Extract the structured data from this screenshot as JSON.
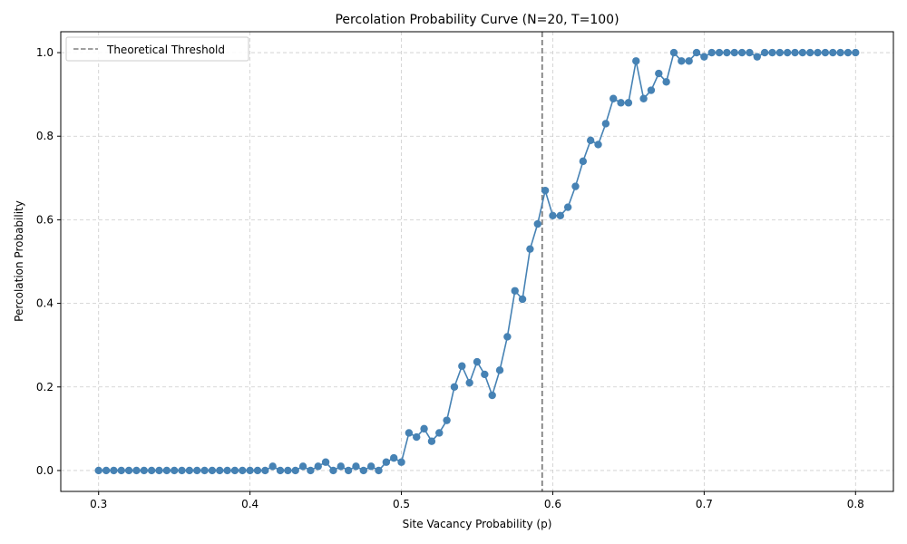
{
  "chart_data": {
    "type": "line",
    "title": "Percolation Probability Curve (N=20, T=100)",
    "xlabel": "Site Vacancy Probability (p)",
    "ylabel": "Percolation Probability",
    "xlim": [
      0.275,
      0.825
    ],
    "ylim": [
      -0.05,
      1.05
    ],
    "x_ticks": [
      0.3,
      0.4,
      0.5,
      0.6,
      0.7,
      0.8
    ],
    "x_tick_labels": [
      "0.3",
      "0.4",
      "0.5",
      "0.6",
      "0.7",
      "0.8"
    ],
    "y_ticks": [
      0.0,
      0.2,
      0.4,
      0.6,
      0.8,
      1.0
    ],
    "y_tick_labels": [
      "0.0",
      "0.2",
      "0.4",
      "0.6",
      "0.8",
      "1.0"
    ],
    "grid": true,
    "legend_position": "top-left",
    "threshold": {
      "name": "Theoretical Threshold",
      "x": 0.593,
      "color": "#808080"
    },
    "series": [
      {
        "color": "#4682b4",
        "x": [
          0.3,
          0.305,
          0.31,
          0.315,
          0.32,
          0.325,
          0.33,
          0.335,
          0.34,
          0.345,
          0.35,
          0.355,
          0.36,
          0.365,
          0.37,
          0.375,
          0.38,
          0.385,
          0.39,
          0.395,
          0.4,
          0.405,
          0.41,
          0.415,
          0.42,
          0.425,
          0.43,
          0.435,
          0.44,
          0.445,
          0.45,
          0.455,
          0.46,
          0.465,
          0.47,
          0.475,
          0.48,
          0.485,
          0.49,
          0.495,
          0.5,
          0.505,
          0.51,
          0.515,
          0.52,
          0.525,
          0.53,
          0.535,
          0.54,
          0.545,
          0.55,
          0.555,
          0.56,
          0.565,
          0.57,
          0.575,
          0.58,
          0.585,
          0.59,
          0.595,
          0.6,
          0.605,
          0.61,
          0.615,
          0.62,
          0.625,
          0.63,
          0.635,
          0.64,
          0.645,
          0.65,
          0.655,
          0.66,
          0.665,
          0.67,
          0.675,
          0.68,
          0.685,
          0.69,
          0.695,
          0.7,
          0.705,
          0.71,
          0.715,
          0.72,
          0.725,
          0.73,
          0.735,
          0.74,
          0.745,
          0.75,
          0.755,
          0.76,
          0.765,
          0.77,
          0.775,
          0.78,
          0.785,
          0.79,
          0.795,
          0.8
        ],
        "y": [
          0,
          0,
          0,
          0,
          0,
          0,
          0,
          0,
          0,
          0,
          0,
          0,
          0,
          0,
          0,
          0,
          0,
          0,
          0,
          0,
          0,
          0,
          0,
          0.01,
          0,
          0,
          0,
          0.01,
          0,
          0.01,
          0.02,
          0,
          0.01,
          0,
          0.01,
          0,
          0.01,
          0,
          0.02,
          0.03,
          0.02,
          0.09,
          0.08,
          0.1,
          0.07,
          0.09,
          0.12,
          0.2,
          0.25,
          0.21,
          0.26,
          0.23,
          0.18,
          0.24,
          0.32,
          0.43,
          0.41,
          0.53,
          0.59,
          0.67,
          0.61,
          0.61,
          0.63,
          0.68,
          0.74,
          0.79,
          0.78,
          0.83,
          0.89,
          0.88,
          0.88,
          0.98,
          0.89,
          0.91,
          0.95,
          0.93,
          1.0,
          0.98,
          0.98,
          1.0,
          0.99,
          1.0,
          1.0,
          1.0,
          1.0,
          1.0,
          1.0,
          0.99,
          1.0,
          1.0,
          1.0,
          1.0,
          1.0,
          1.0,
          1.0,
          1.0,
          1.0,
          1.0,
          1.0,
          1.0,
          1.0
        ]
      }
    ]
  }
}
